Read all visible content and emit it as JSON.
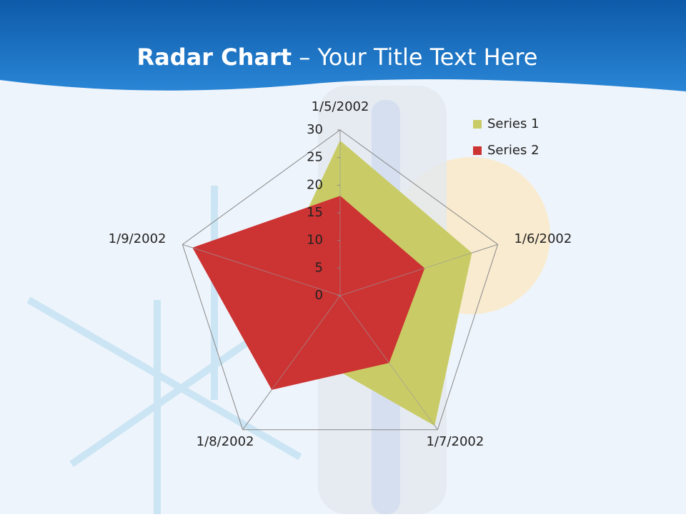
{
  "slide": {
    "title_bold": "Radar Chart",
    "title_rest": " – Your Title Text Here"
  },
  "chart_data": {
    "type": "radar",
    "categories": [
      "1/5/2002",
      "1/6/2002",
      "1/7/2002",
      "1/8/2002",
      "1/9/2002"
    ],
    "series": [
      {
        "name": "Series 1",
        "color": "#c9cc66",
        "values": [
          28,
          25,
          29,
          12,
          12
        ]
      },
      {
        "name": "Series 2",
        "color": "#cc3333",
        "values": [
          18,
          16,
          15,
          21,
          28
        ]
      }
    ],
    "ylim": [
      0,
      30
    ],
    "yticks": [
      0,
      5,
      10,
      15,
      20,
      25,
      30
    ],
    "legend": "top-right"
  }
}
